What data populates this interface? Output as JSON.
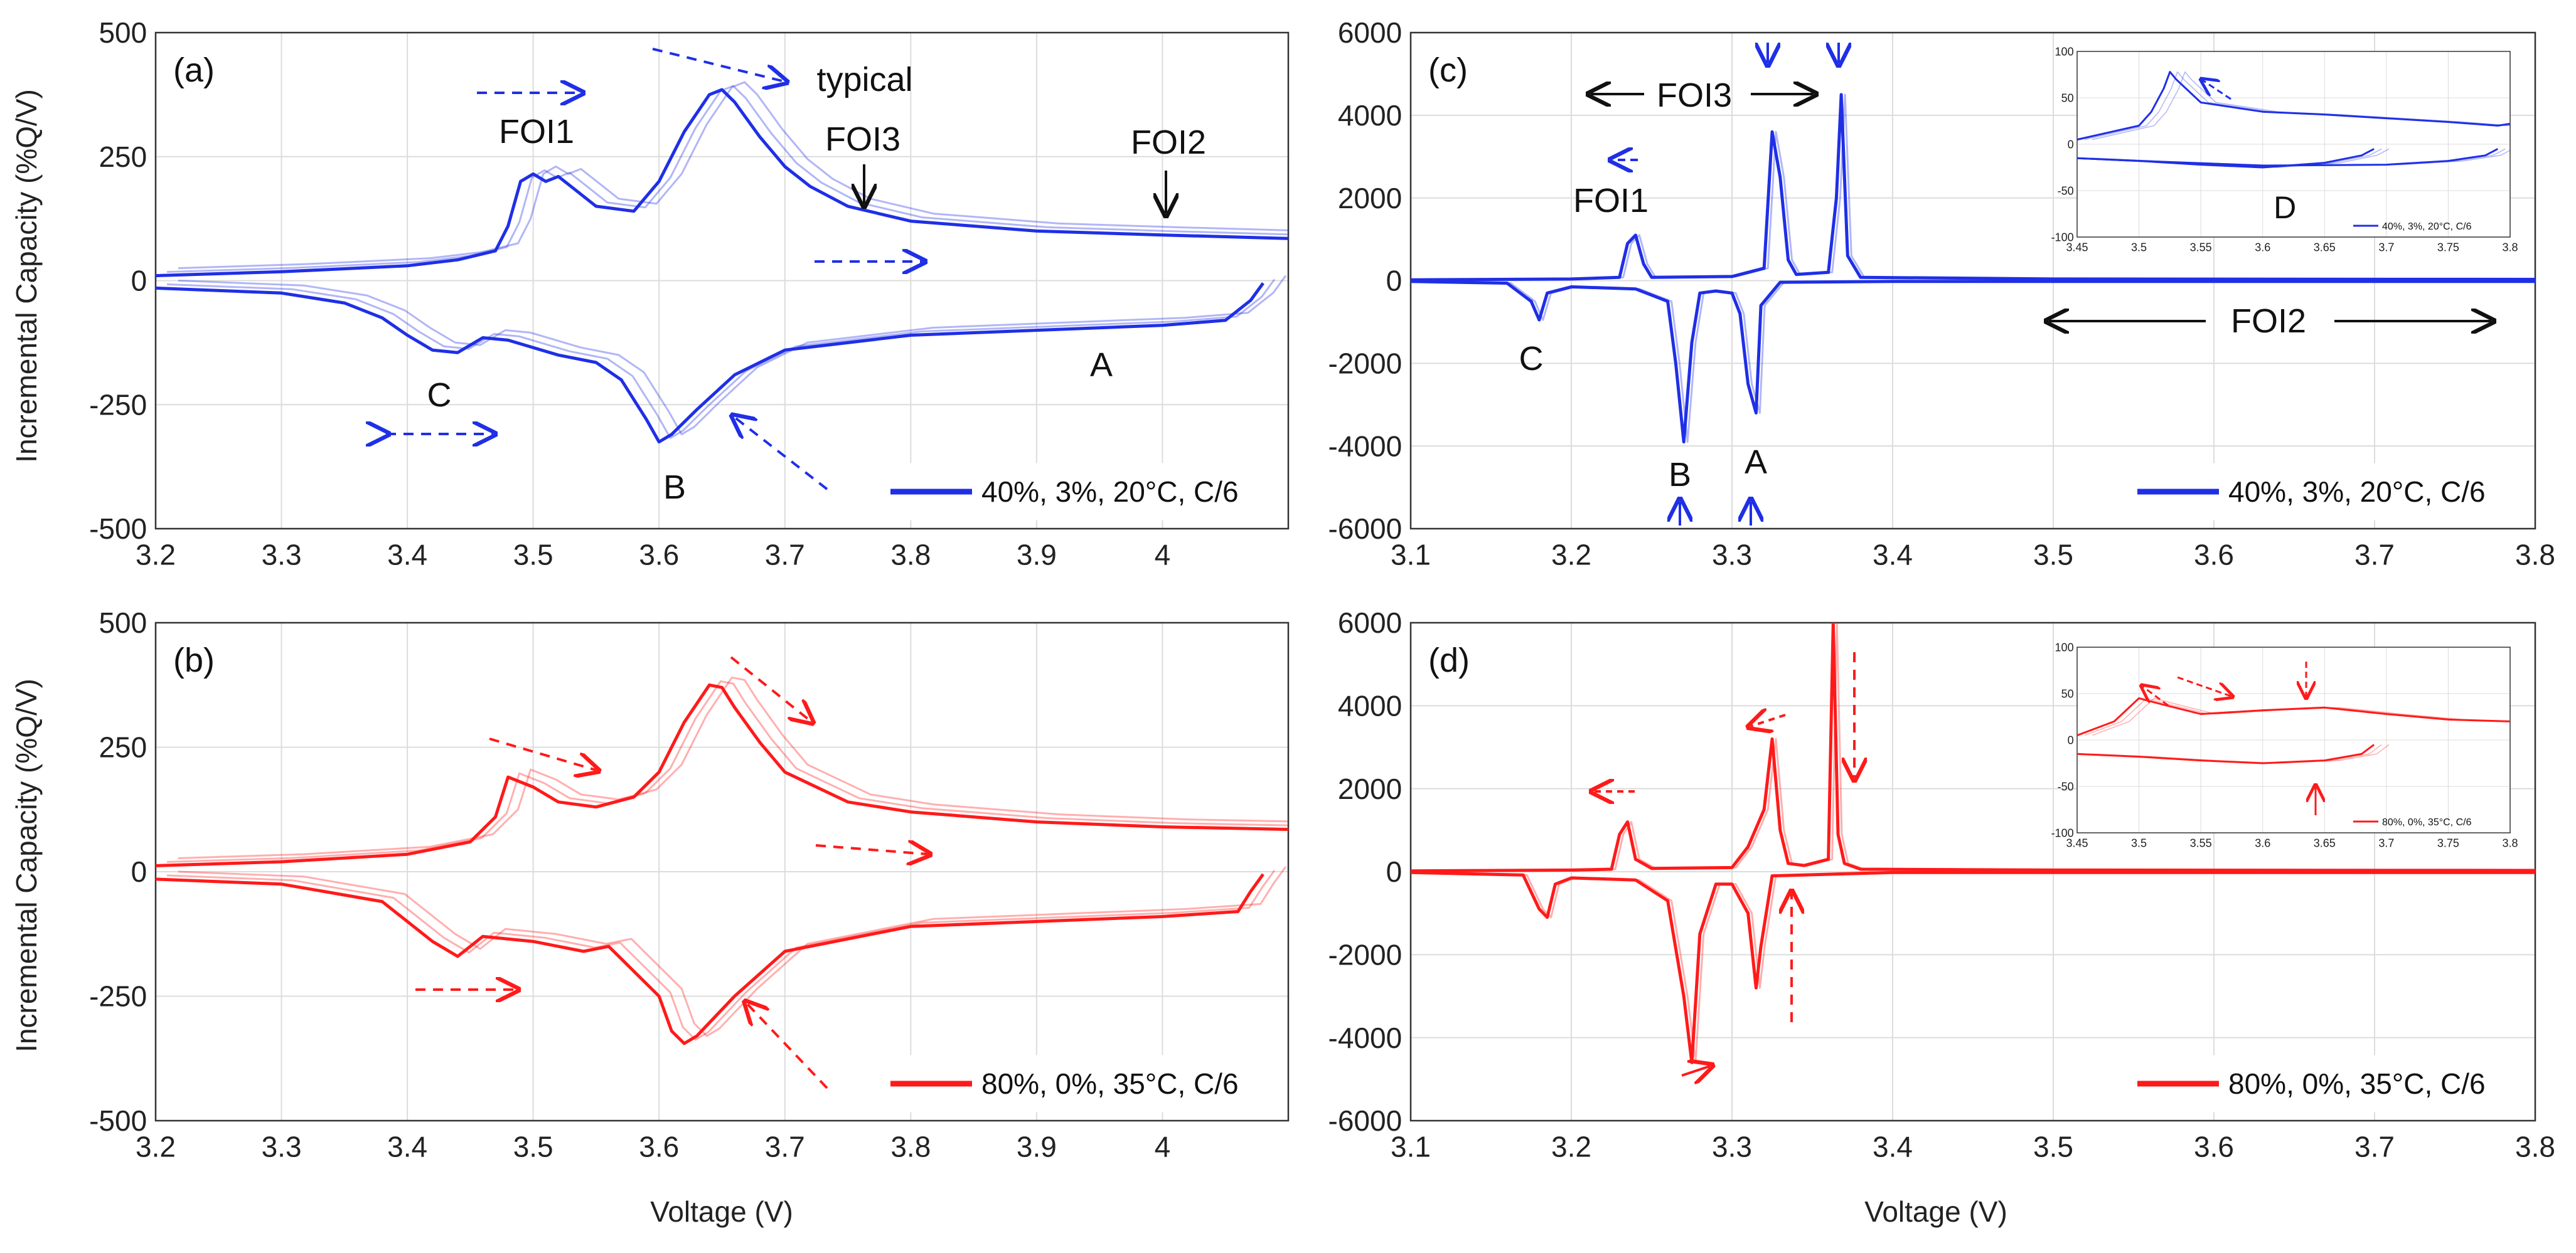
{
  "figure": {
    "shared_ylabel": "Incremental Capacity (%Q/V)",
    "shared_xlabel": "Voltage (V)"
  },
  "chart_data": [
    {
      "id": "a",
      "type": "line",
      "panel_label": "(a)",
      "color": "#1f2fe6",
      "xlim": [
        3.2,
        4.1
      ],
      "ylim": [
        -500,
        500
      ],
      "xticks": [
        "3.2",
        "3.3",
        "3.4",
        "3.5",
        "3.6",
        "3.7",
        "3.8",
        "3.9",
        "4"
      ],
      "yticks": [
        "500",
        "250",
        "0",
        "-250",
        "-500"
      ],
      "grid": true,
      "legend": {
        "label": "40%, 3%, 20°C, C/6",
        "placement": "bottom-right"
      },
      "annotations": [
        "FOI1",
        "typical",
        "FOI3",
        "FOI2",
        "A",
        "B",
        "C"
      ],
      "series": [
        {
          "part": "charge",
          "x": [
            3.2,
            3.3,
            3.4,
            3.44,
            3.47,
            3.48,
            3.49,
            3.5,
            3.51,
            3.52,
            3.53,
            3.55,
            3.58,
            3.6,
            3.62,
            3.64,
            3.65,
            3.66,
            3.68,
            3.7,
            3.72,
            3.75,
            3.8,
            3.85,
            3.9,
            4.0,
            4.1
          ],
          "y": [
            10,
            18,
            30,
            42,
            60,
            110,
            200,
            215,
            200,
            210,
            190,
            150,
            140,
            200,
            300,
            375,
            385,
            360,
            290,
            230,
            190,
            150,
            120,
            110,
            100,
            92,
            85
          ]
        },
        {
          "part": "discharge",
          "x": [
            3.2,
            3.3,
            3.35,
            3.38,
            3.4,
            3.42,
            3.44,
            3.46,
            3.48,
            3.52,
            3.55,
            3.57,
            3.59,
            3.6,
            3.61,
            3.63,
            3.66,
            3.7,
            3.8,
            3.9,
            4.0,
            4.05,
            4.07,
            4.08
          ],
          "y": [
            -15,
            -25,
            -45,
            -75,
            -110,
            -140,
            -145,
            -115,
            -120,
            -150,
            -165,
            -200,
            -280,
            -325,
            -310,
            -260,
            -190,
            -140,
            -110,
            -100,
            -90,
            -80,
            -40,
            -5
          ]
        }
      ]
    },
    {
      "id": "b",
      "type": "line",
      "panel_label": "(b)",
      "color": "#ff1a1a",
      "xlim": [
        3.2,
        4.1
      ],
      "ylim": [
        -500,
        500
      ],
      "xticks": [
        "3.2",
        "3.3",
        "3.4",
        "3.5",
        "3.6",
        "3.7",
        "3.8",
        "3.9",
        "4"
      ],
      "yticks": [
        "500",
        "250",
        "0",
        "-250",
        "-500"
      ],
      "grid": true,
      "legend": {
        "label": "80%, 0%, 35°C, C/6",
        "placement": "bottom-right"
      },
      "series": [
        {
          "part": "charge",
          "x": [
            3.2,
            3.3,
            3.4,
            3.45,
            3.47,
            3.48,
            3.5,
            3.52,
            3.55,
            3.58,
            3.6,
            3.62,
            3.64,
            3.65,
            3.66,
            3.68,
            3.7,
            3.75,
            3.8,
            3.9,
            4.0,
            4.1
          ],
          "y": [
            12,
            20,
            35,
            60,
            110,
            190,
            170,
            140,
            130,
            150,
            200,
            300,
            375,
            370,
            330,
            260,
            200,
            140,
            120,
            100,
            90,
            85
          ]
        },
        {
          "part": "discharge",
          "x": [
            3.2,
            3.3,
            3.38,
            3.42,
            3.44,
            3.46,
            3.5,
            3.54,
            3.56,
            3.6,
            3.61,
            3.62,
            3.63,
            3.66,
            3.7,
            3.8,
            3.9,
            4.0,
            4.06,
            4.07,
            4.08
          ],
          "y": [
            -15,
            -25,
            -60,
            -140,
            -170,
            -130,
            -140,
            -160,
            -150,
            -250,
            -320,
            -345,
            -330,
            -250,
            -160,
            -110,
            -100,
            -90,
            -80,
            -40,
            -5
          ]
        }
      ]
    },
    {
      "id": "c",
      "type": "line",
      "panel_label": "(c)",
      "color": "#1f2fe6",
      "xlim": [
        3.1,
        3.8
      ],
      "ylim": [
        -6000,
        6000
      ],
      "xticks": [
        "3.1",
        "3.2",
        "3.3",
        "3.4",
        "3.5",
        "3.6",
        "3.7",
        "3.8"
      ],
      "yticks": [
        "6000",
        "4000",
        "2000",
        "0",
        "-2000",
        "-4000",
        "-6000"
      ],
      "grid": true,
      "legend": {
        "label": "40%, 3%, 20°C, C/6",
        "placement": "bottom-right"
      },
      "annotations": [
        "FOI3",
        "FOI1",
        "FOI2",
        "A",
        "B",
        "C"
      ],
      "series": [
        {
          "part": "charge",
          "x": [
            3.1,
            3.2,
            3.23,
            3.235,
            3.24,
            3.245,
            3.25,
            3.3,
            3.32,
            3.325,
            3.33,
            3.335,
            3.34,
            3.36,
            3.365,
            3.368,
            3.372,
            3.38,
            3.5,
            3.8
          ],
          "y": [
            20,
            40,
            80,
            900,
            1100,
            400,
            80,
            100,
            300,
            3600,
            2500,
            500,
            150,
            200,
            2000,
            4500,
            600,
            80,
            40,
            30
          ]
        },
        {
          "part": "discharge",
          "x": [
            3.1,
            3.16,
            3.175,
            3.18,
            3.185,
            3.2,
            3.24,
            3.26,
            3.265,
            3.27,
            3.275,
            3.28,
            3.29,
            3.3,
            3.305,
            3.31,
            3.315,
            3.318,
            3.33,
            3.4,
            3.8
          ],
          "y": [
            -20,
            -60,
            -500,
            -950,
            -300,
            -150,
            -200,
            -500,
            -2000,
            -3900,
            -1500,
            -300,
            -250,
            -300,
            -800,
            -2500,
            -3200,
            -600,
            -40,
            -20,
            -20
          ]
        }
      ],
      "inset": {
        "xlim": [
          3.45,
          3.8
        ],
        "ylim": [
          -100,
          100
        ],
        "xticks": [
          "3.45",
          "3.5",
          "3.55",
          "3.6",
          "3.65",
          "3.7",
          "3.75",
          "3.8"
        ],
        "yticks": [
          "100",
          "50",
          "0",
          "-50",
          "-100"
        ],
        "label": "D",
        "legend": "40%, 3%, 20°C, C/6",
        "series": [
          {
            "x": [
              3.45,
              3.5,
              3.51,
              3.52,
              3.525,
              3.53,
              3.55,
              3.6,
              3.65,
              3.7,
              3.75,
              3.79,
              3.8
            ],
            "y": [
              5,
              20,
              35,
              60,
              78,
              70,
              45,
              35,
              32,
              28,
              24,
              20,
              22
            ]
          },
          {
            "x": [
              3.45,
              3.5,
              3.55,
              3.6,
              3.65,
              3.68,
              3.69
            ],
            "y": [
              -15,
              -18,
              -22,
              -25,
              -20,
              -12,
              -5
            ]
          },
          {
            "x": [
              3.45,
              3.5,
              3.6,
              3.7,
              3.75,
              3.78,
              3.79
            ],
            "y": [
              -15,
              -18,
              -23,
              -22,
              -18,
              -12,
              -5
            ]
          }
        ]
      }
    },
    {
      "id": "d",
      "type": "line",
      "panel_label": "(d)",
      "color": "#ff1a1a",
      "xlim": [
        3.1,
        3.8
      ],
      "ylim": [
        -6000,
        6000
      ],
      "xticks": [
        "3.1",
        "3.2",
        "3.3",
        "3.4",
        "3.5",
        "3.6",
        "3.7",
        "3.8"
      ],
      "yticks": [
        "6000",
        "4000",
        "2000",
        "0",
        "-2000",
        "-4000",
        "-6000"
      ],
      "grid": true,
      "legend": {
        "label": "80%, 0%, 35°C, C/6",
        "placement": "bottom-right"
      },
      "series": [
        {
          "part": "charge",
          "x": [
            3.1,
            3.2,
            3.225,
            3.23,
            3.235,
            3.24,
            3.25,
            3.3,
            3.31,
            3.32,
            3.325,
            3.33,
            3.335,
            3.345,
            3.36,
            3.363,
            3.366,
            3.37,
            3.38,
            3.5,
            3.8
          ],
          "y": [
            20,
            40,
            60,
            900,
            1200,
            300,
            80,
            100,
            600,
            1500,
            3200,
            1000,
            200,
            150,
            300,
            6000,
            900,
            200,
            60,
            40,
            30
          ]
        },
        {
          "part": "discharge",
          "x": [
            3.1,
            3.17,
            3.18,
            3.185,
            3.19,
            3.2,
            3.24,
            3.26,
            3.27,
            3.275,
            3.28,
            3.29,
            3.3,
            3.31,
            3.315,
            3.318,
            3.325,
            3.4,
            3.8
          ],
          "y": [
            -20,
            -80,
            -900,
            -1100,
            -300,
            -150,
            -200,
            -700,
            -3000,
            -4600,
            -1500,
            -300,
            -300,
            -1000,
            -2800,
            -1800,
            -100,
            -20,
            -20
          ]
        }
      ],
      "inset": {
        "xlim": [
          3.45,
          3.8
        ],
        "ylim": [
          -100,
          100
        ],
        "xticks": [
          "3.45",
          "3.5",
          "3.55",
          "3.6",
          "3.65",
          "3.7",
          "3.75",
          "3.8"
        ],
        "yticks": [
          "100",
          "50",
          "0",
          "-50",
          "-100"
        ],
        "legend": "80%, 0%, 35°C, C/6",
        "series": [
          {
            "x": [
              3.45,
              3.48,
              3.5,
              3.52,
              3.55,
              3.6,
              3.65,
              3.7,
              3.75,
              3.8
            ],
            "y": [
              5,
              20,
              45,
              38,
              28,
              32,
              35,
              28,
              22,
              20
            ]
          },
          {
            "x": [
              3.45,
              3.5,
              3.55,
              3.6,
              3.65,
              3.68,
              3.69
            ],
            "y": [
              -15,
              -18,
              -22,
              -25,
              -22,
              -15,
              -5
            ]
          }
        ]
      }
    }
  ]
}
